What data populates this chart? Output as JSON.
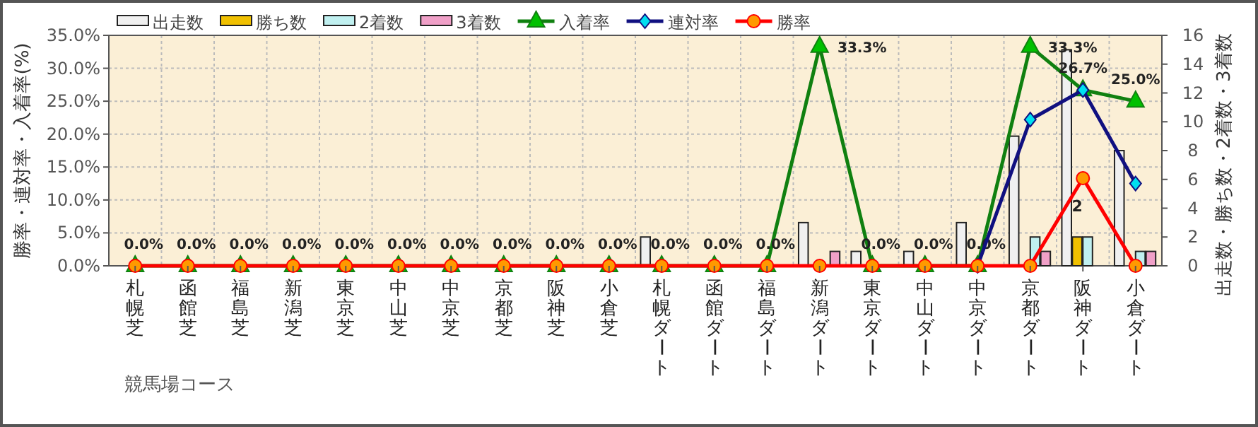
{
  "chart_data": {
    "type": "bar",
    "xlabel": "競馬場コース",
    "ylabel": "勝率・連対率・入着率(%)",
    "y2label": "出走数・勝ち数・2着数・3着数",
    "categories": [
      "札幌芝",
      "函館芝",
      "福島芝",
      "新潟芝",
      "東京芝",
      "中山芝",
      "中京芝",
      "京都芝",
      "阪神芝",
      "小倉芝",
      "札幌ダート",
      "函館ダート",
      "福島ダート",
      "新潟ダート",
      "東京ダート",
      "中山ダート",
      "中京ダート",
      "京都ダート",
      "阪神ダート",
      "小倉ダート"
    ],
    "series": [
      {
        "name": "出走数",
        "axis": "y2",
        "color": "#f0f0f0",
        "values": [
          0,
          0,
          0,
          0,
          0,
          0,
          0,
          0,
          0,
          0,
          2,
          0,
          0,
          3,
          1,
          1,
          3,
          9,
          15,
          8
        ]
      },
      {
        "name": "勝ち数",
        "axis": "y2",
        "color": "#f0c000",
        "values": [
          0,
          0,
          0,
          0,
          0,
          0,
          0,
          0,
          0,
          0,
          0,
          0,
          0,
          0,
          0,
          0,
          0,
          0,
          2,
          0
        ],
        "value_labels": [
          null,
          null,
          null,
          null,
          null,
          null,
          null,
          null,
          null,
          null,
          null,
          null,
          null,
          null,
          null,
          null,
          null,
          null,
          "2",
          null
        ]
      },
      {
        "name": "2着数",
        "axis": "y2",
        "color": "#c0f0f0",
        "values": [
          0,
          0,
          0,
          0,
          0,
          0,
          0,
          0,
          0,
          0,
          0,
          0,
          0,
          0,
          0,
          0,
          0,
          2,
          2,
          1
        ]
      },
      {
        "name": "3着数",
        "axis": "y2",
        "color": "#f0a0c8",
        "values": [
          0,
          0,
          0,
          0,
          0,
          0,
          0,
          0,
          0,
          0,
          0,
          0,
          0,
          1,
          0,
          0,
          0,
          1,
          0,
          1
        ]
      },
      {
        "name": "入着率",
        "type": "line",
        "marker": "triangle",
        "color": "#108010",
        "values": [
          0,
          0,
          0,
          0,
          0,
          0,
          0,
          0,
          0,
          0,
          0,
          0,
          0,
          33.3,
          0,
          0,
          0,
          33.3,
          26.7,
          25.0
        ],
        "value_labels": [
          "0.0%",
          "0.0%",
          "0.0%",
          "0.0%",
          "0.0%",
          "0.0%",
          "0.0%",
          "0.0%",
          "0.0%",
          "0.0%",
          "0.0%",
          "0.0%",
          "0.0%",
          "33.3%",
          "0.0%",
          "0.0%",
          "0.0%",
          "33.3%",
          "26.7%",
          "25.0%"
        ]
      },
      {
        "name": "連対率",
        "type": "line",
        "marker": "diamond",
        "color": "#101080",
        "values": [
          null,
          null,
          null,
          null,
          null,
          null,
          null,
          null,
          null,
          null,
          null,
          null,
          null,
          null,
          null,
          null,
          0,
          22.2,
          26.7,
          12.5
        ]
      },
      {
        "name": "勝率",
        "type": "line",
        "marker": "circle",
        "color": "#ff0000",
        "values": [
          0,
          0,
          0,
          0,
          0,
          0,
          0,
          0,
          0,
          0,
          0,
          0,
          0,
          0,
          0,
          0,
          0,
          0,
          13.3,
          0
        ]
      }
    ],
    "ylim": [
      0,
      35
    ],
    "yticks": [
      {
        "value": 0,
        "label": "0.0%"
      },
      {
        "value": 5,
        "label": "5.0%"
      },
      {
        "value": 10,
        "label": "10.0%"
      },
      {
        "value": 15,
        "label": "15.0%"
      },
      {
        "value": 20,
        "label": "20.0%"
      },
      {
        "value": 25,
        "label": "25.0%"
      },
      {
        "value": 30,
        "label": "30.0%"
      },
      {
        "value": 35,
        "label": "35.0%"
      }
    ],
    "y2lim": [
      0,
      16
    ],
    "y2ticks": [
      0,
      2,
      4,
      6,
      8,
      10,
      12,
      14,
      16
    ],
    "grid": true,
    "legend": "top",
    "line_style": "solid"
  }
}
